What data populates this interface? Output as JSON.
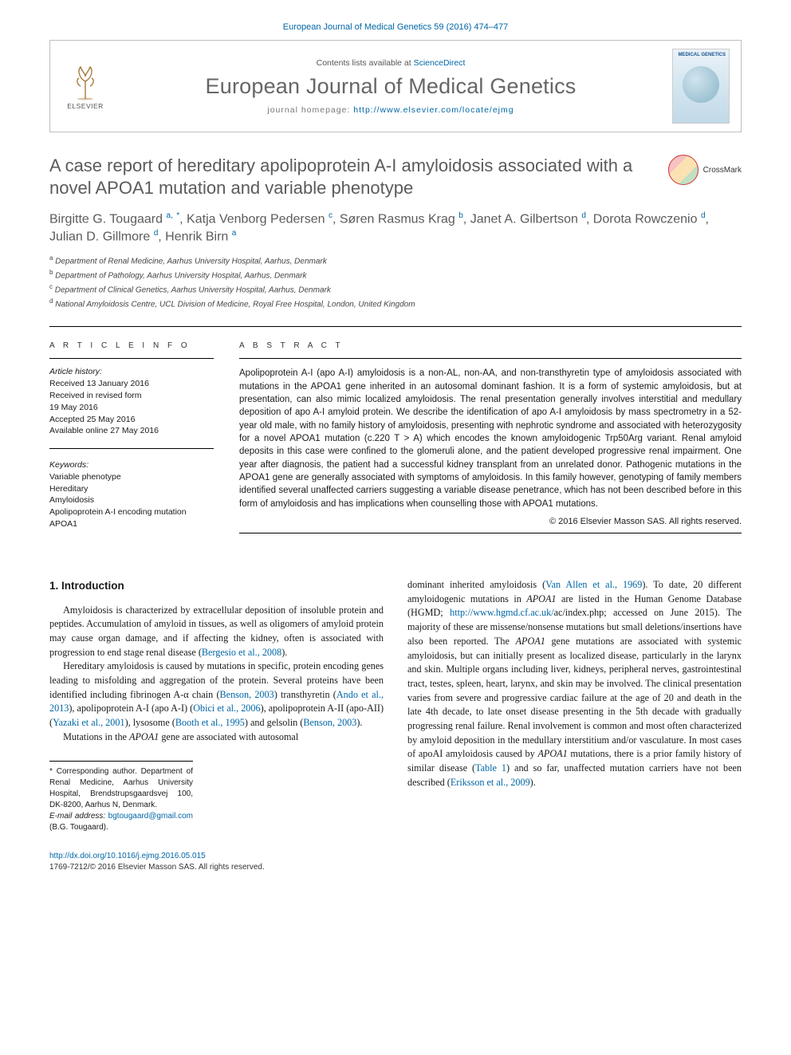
{
  "citation": "European Journal of Medical Genetics 59 (2016) 474–477",
  "header": {
    "contents_prefix": "Contents lists available at ",
    "contents_link_text": "ScienceDirect",
    "journal_name": "European Journal of Medical Genetics",
    "homepage_prefix": "journal homepage: ",
    "homepage_url": "http://www.elsevier.com/locate/ejmg",
    "publisher": "ELSEVIER",
    "cover_text": "MEDICAL GENETICS"
  },
  "crossmark_label": "CrossMark",
  "title": "A case report of hereditary apolipoprotein A-I amyloidosis associated with a novel APOA1 mutation and variable phenotype",
  "authors_html": "Birgitte G. Tougaard <sup>a,</sup> <sup class='corr'>*</sup>, Katja Venborg Pedersen <sup>c</sup>, Søren Rasmus Krag <sup>b</sup>, Janet A. Gilbertson <sup>d</sup>, Dorota Rowczenio <sup>d</sup>, Julian D. Gillmore <sup>d</sup>, Henrik Birn <sup>a</sup>",
  "affiliations": [
    {
      "sup": "a",
      "text": "Department of Renal Medicine, Aarhus University Hospital, Aarhus, Denmark"
    },
    {
      "sup": "b",
      "text": "Department of Pathology, Aarhus University Hospital, Aarhus, Denmark"
    },
    {
      "sup": "c",
      "text": "Department of Clinical Genetics, Aarhus University Hospital, Aarhus, Denmark"
    },
    {
      "sup": "d",
      "text": "National Amyloidosis Centre, UCL Division of Medicine, Royal Free Hospital, London, United Kingdom"
    }
  ],
  "labels": {
    "article_info": "A R T I C L E  I N F O",
    "abstract": "A B S T R A C T",
    "history_head": "Article history:",
    "keywords_head": "Keywords:",
    "intro_head": "1. Introduction"
  },
  "history_lines": [
    "Received 13 January 2016",
    "Received in revised form",
    "19 May 2016",
    "Accepted 25 May 2016",
    "Available online 27 May 2016"
  ],
  "keywords": [
    "Variable phenotype",
    "Hereditary",
    "Amyloidosis",
    "Apolipoprotein A-I encoding mutation",
    "APOA1"
  ],
  "abstract": "Apolipoprotein A-I (apo A-I) amyloidosis is a non-AL, non-AA, and non-transthyretin type of amyloidosis associated with mutations in the APOA1 gene inherited in an autosomal dominant fashion. It is a form of systemic amyloidosis, but at presentation, can also mimic localized amyloidosis. The renal presentation generally involves interstitial and medullary deposition of apo A-I amyloid protein. We describe the identification of apo A-I amyloidosis by mass spectrometry in a 52-year old male, with no family history of amyloidosis, presenting with nephrotic syndrome and associated with heterozygosity for a novel APOA1 mutation (c.220 T > A) which encodes the known amyloidogenic Trp50Arg variant. Renal amyloid deposits in this case were confined to the glomeruli alone, and the patient developed progressive renal impairment. One year after diagnosis, the patient had a successful kidney transplant from an unrelated donor. Pathogenic mutations in the APOA1 gene are generally associated with symptoms of amyloidosis. In this family however, genotyping of family members identified several unaffected carriers suggesting a variable disease penetrance, which has not been described before in this form of amyloidosis and has implications when counselling those with APOA1 mutations.",
  "abstract_copyright": "© 2016 Elsevier Masson SAS. All rights reserved.",
  "body": {
    "p1": "Amyloidosis is characterized by extracellular deposition of insoluble protein and peptides. Accumulation of amyloid in tissues, as well as oligomers of amyloid protein may cause organ damage, and if affecting the kidney, often is associated with progression to end stage renal disease (",
    "p1_ref": "Bergesio et al., 2008",
    "p1_tail": ").",
    "p2_a": "Hereditary amyloidosis is caused by mutations in specific, protein encoding genes leading to misfolding and aggregation of the protein. Several proteins have been identified including fibrinogen A-α chain (",
    "p2_r1": "Benson, 2003",
    "p2_b": ") transthyretin (",
    "p2_r2": "Ando et al., 2013",
    "p2_c": "), apolipoprotein A-I (apo A-I) (",
    "p2_r3": "Obici et al., 2006",
    "p2_d": "), apolipoprotein A-II (apo-AII) (",
    "p2_r4": "Yazaki et al., 2001",
    "p2_e": "), lysosome (",
    "p2_r5": "Booth et al., 1995",
    "p2_f": ") and gelsolin (",
    "p2_r6": "Benson, 2003",
    "p2_g": ").",
    "p3_a": "Mutations in the ",
    "p3_gene": "APOA1",
    "p3_b": " gene are associated with autosomal",
    "p3_c": "dominant inherited amyloidosis (",
    "p3_r1": "Van Allen et al., 1969",
    "p3_d": "). To date, 20 different amyloidogenic mutations in ",
    "p3_e": " are listed in the Human Genome Database (HGMD; ",
    "p3_url": "http://www.hgmd.cf.ac.uk/",
    "p3_f": "ac/index.php; accessed on June 2015). The majority of these are missense/nonsense mutations but small deletions/insertions have also been reported. The ",
    "p3_g": " gene mutations are associated with systemic amyloidosis, but can initially present as localized disease, particularly in the larynx and skin. Multiple organs including liver, kidneys, peripheral nerves, gastrointestinal tract, testes, spleen, heart, larynx, and skin may be involved. The clinical presentation varies from severe and progressive cardiac failure at the age of 20 and death in the late 4th decade, to late onset disease presenting in the 5th decade with gradually progressing renal failure. Renal involvement is common and most often characterized by amyloid deposition in the medullary interstitium and/or vasculature. In most cases of apoAI amyloidosis caused by ",
    "p3_h": " mutations, there is a prior family history of similar disease (",
    "p3_r2": "Table 1",
    "p3_i": ") and so far, unaffected mutation carriers have not been described (",
    "p3_r3": "Eriksson et al., 2009",
    "p3_j": ")."
  },
  "corr": {
    "label": "* Corresponding author. ",
    "text": "Department of Renal Medicine, Aarhus University Hospital, Brendstrupsgaardsvej 100, DK-8200, Aarhus N, Denmark.",
    "email_label": "E-mail address: ",
    "email": "bgtougaard@gmail.com",
    "email_tail": " (B.G. Tougaard)."
  },
  "footer": {
    "doi": "http://dx.doi.org/10.1016/j.ejmg.2016.05.015",
    "issn_line": "1769-7212/© 2016 Elsevier Masson SAS. All rights reserved."
  },
  "colors": {
    "link": "#0066a6",
    "heading_grey": "#5b5b5b",
    "text": "#1a1a1a",
    "rule": "#000000",
    "border": "#bfbfbf"
  },
  "typography": {
    "title_fontsize": 22,
    "journal_fontsize": 27,
    "authors_fontsize": 16,
    "abstract_fontsize": 11.5,
    "body_fontsize": 12.2,
    "info_fontsize": 10.5
  }
}
